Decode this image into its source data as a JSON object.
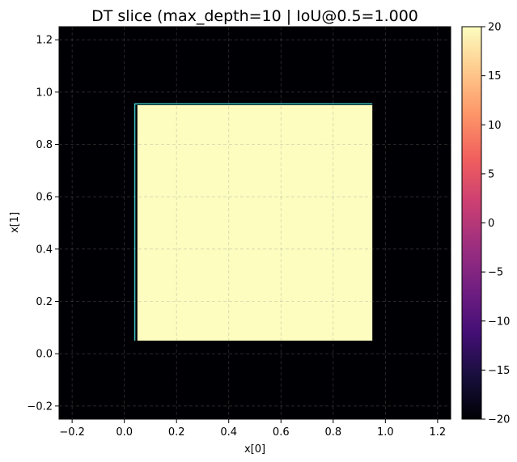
{
  "chart_data": {
    "type": "heatmap",
    "title": "DT slice (max_depth=10 | IoU@0.5=1.000",
    "xlabel": "x[0]",
    "ylabel": "x[1]",
    "xlim": [
      -0.25,
      1.25
    ],
    "ylim": [
      -0.25,
      1.25
    ],
    "xticks": [
      -0.2,
      0.0,
      0.2,
      0.4,
      0.6,
      0.8,
      1.0,
      1.2
    ],
    "xtick_labels": [
      "−0.2",
      "0.0",
      "0.2",
      "0.4",
      "0.6",
      "0.8",
      "1.0",
      "1.2"
    ],
    "yticks": [
      -0.2,
      0.0,
      0.2,
      0.4,
      0.6,
      0.8,
      1.0,
      1.2
    ],
    "ytick_labels": [
      "−0.2",
      "0.0",
      "0.2",
      "0.4",
      "0.6",
      "0.8",
      "1.0",
      "1.2"
    ],
    "grid": true,
    "background_value": -20,
    "background_color": "#000004",
    "region": {
      "x0": 0.05,
      "x1": 0.95,
      "y0": 0.05,
      "y1": 0.95,
      "value": 20,
      "color": "#fcfdbf"
    },
    "boundary": {
      "color": "#40c4c4",
      "points": [
        [
          0.04,
          0.05
        ],
        [
          0.04,
          0.955
        ],
        [
          0.95,
          0.955
        ]
      ]
    },
    "colorbar": {
      "vmin": -20,
      "vmax": 20,
      "ticks": [
        20,
        15,
        10,
        5,
        0,
        -5,
        -10,
        -15,
        -20
      ],
      "tick_labels": [
        "20",
        "15",
        "10",
        "5",
        "0",
        "−5",
        "−10",
        "−15",
        "−20"
      ],
      "colormap_stops": [
        "#000004",
        "#180f3d",
        "#440f76",
        "#721f81",
        "#9e2f7f",
        "#cd4071",
        "#f1605d",
        "#fd9668",
        "#feca8d",
        "#fcfdbf"
      ]
    }
  }
}
